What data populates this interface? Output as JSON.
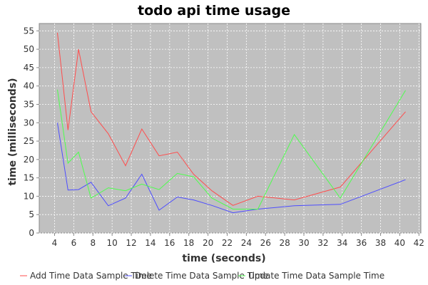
{
  "chart_data": {
    "type": "line",
    "title": "todo api time usage",
    "xlabel": "time (seconds)",
    "ylabel": "time (milliseconds)",
    "xlim": [
      2.4,
      42.2
    ],
    "ylim": [
      0,
      57
    ],
    "xticks": [
      4,
      6,
      8,
      10,
      12,
      14,
      16,
      18,
      20,
      22,
      24,
      26,
      28,
      30,
      32,
      34,
      36,
      38,
      40,
      42
    ],
    "yticks": [
      0,
      5,
      10,
      15,
      20,
      25,
      30,
      35,
      40,
      45,
      50,
      55
    ],
    "grid": true,
    "legend_position": "bottom",
    "plot_background": "#c0c0c0",
    "series": [
      {
        "name": "Add Time Data Sample Time",
        "color": "#ff4d4d",
        "x": [
          4.3,
          5.4,
          6.5,
          7.8,
          9.6,
          11.4,
          13.1,
          14.9,
          16.8,
          18.5,
          20.4,
          22.6,
          25.2,
          29.0,
          33.8,
          40.6
        ],
        "y": [
          54.5,
          28,
          50,
          33,
          27,
          18.3,
          28.3,
          21,
          22,
          16,
          11.5,
          7.5,
          10,
          9,
          12.5,
          33
        ]
      },
      {
        "name": "Delete Time Data Sample Time",
        "color": "#4d4dff",
        "x": [
          4.3,
          5.4,
          6.5,
          7.8,
          9.6,
          11.4,
          13.1,
          14.9,
          16.8,
          18.5,
          20.4,
          22.6,
          25.2,
          29.0,
          33.8,
          40.6
        ],
        "y": [
          30,
          11.7,
          11.8,
          13.8,
          7.4,
          9.5,
          16,
          6.2,
          9.8,
          9,
          7.5,
          5.5,
          6.5,
          7.4,
          7.8,
          14.5
        ]
      },
      {
        "name": "Update Time Data Sample Time",
        "color": "#4dff4d",
        "x": [
          4.3,
          5.4,
          6.5,
          7.8,
          9.6,
          11.4,
          13.1,
          14.9,
          16.8,
          18.5,
          20.4,
          22.6,
          25.2,
          29.0,
          33.8,
          40.6
        ],
        "y": [
          39,
          19,
          22,
          9.5,
          12.3,
          11.5,
          13.3,
          11.8,
          16.2,
          15.3,
          9.5,
          6.5,
          6.5,
          26.8,
          9.5,
          38.8
        ]
      }
    ]
  }
}
